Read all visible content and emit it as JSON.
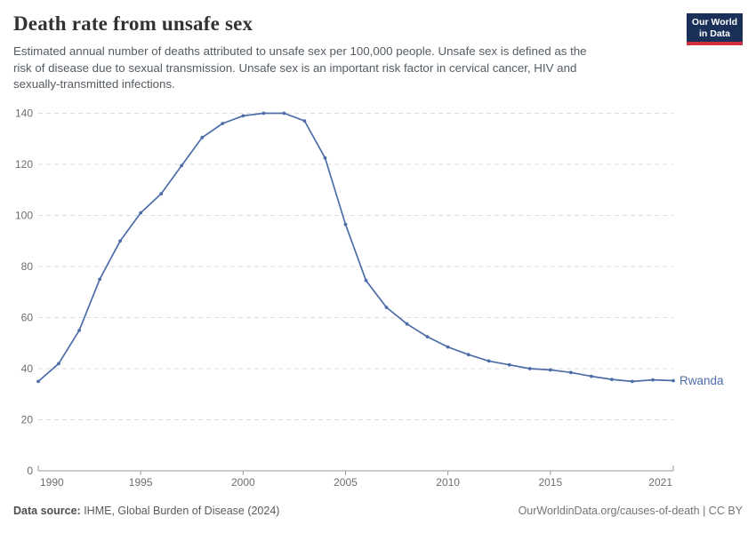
{
  "header": {
    "title": "Death rate from unsafe sex",
    "subtitle_lines": [
      "Estimated annual number of deaths attributed to unsafe sex per 100,000 people. Unsafe sex is defined as the",
      "risk of disease due to sexual transmission. Unsafe sex is an important risk factor in cervical cancer, HIV and",
      "sexually-transmitted infections."
    ]
  },
  "logo": {
    "line1": "Our World",
    "line2": "in Data",
    "bg_color": "#1a3059",
    "bar_color": "#cf303e"
  },
  "chart_data": {
    "type": "line",
    "title": "Death rate from unsafe sex",
    "xlabel": "",
    "ylabel": "",
    "x": [
      1990,
      1991,
      1992,
      1993,
      1994,
      1995,
      1996,
      1997,
      1998,
      1999,
      2000,
      2001,
      2002,
      2003,
      2004,
      2005,
      2006,
      2007,
      2008,
      2009,
      2010,
      2011,
      2012,
      2013,
      2014,
      2015,
      2016,
      2017,
      2018,
      2019,
      2020,
      2021
    ],
    "series": [
      {
        "name": "Rwanda",
        "color": "#4c6da8",
        "values": [
          35,
          42,
          55,
          75,
          90,
          101,
          108.5,
          119.5,
          130.5,
          136,
          139,
          140,
          140,
          137,
          122.5,
          96.5,
          74.5,
          64,
          57.5,
          52.5,
          48.5,
          45.5,
          43,
          41.5,
          40,
          39.5,
          38.5,
          37,
          35.8,
          35,
          35.6,
          35.3
        ]
      }
    ],
    "ylim": [
      0,
      140
    ],
    "yticks": [
      0,
      20,
      40,
      60,
      80,
      100,
      120,
      140
    ],
    "xticks": [
      1990,
      1995,
      2000,
      2005,
      2010,
      2015,
      2021
    ],
    "grid": "horizontal-dashed",
    "legend": "line-end-label",
    "colors": {
      "grid": "#dcdcdc",
      "axis": "#999999",
      "tick_text": "#6e6e6e"
    }
  },
  "footer": {
    "source_label": "Data source:",
    "source_text": " IHME, Global Burden of Disease (2024)",
    "link_text": "OurWorldinData.org/causes-of-death | CC BY"
  }
}
